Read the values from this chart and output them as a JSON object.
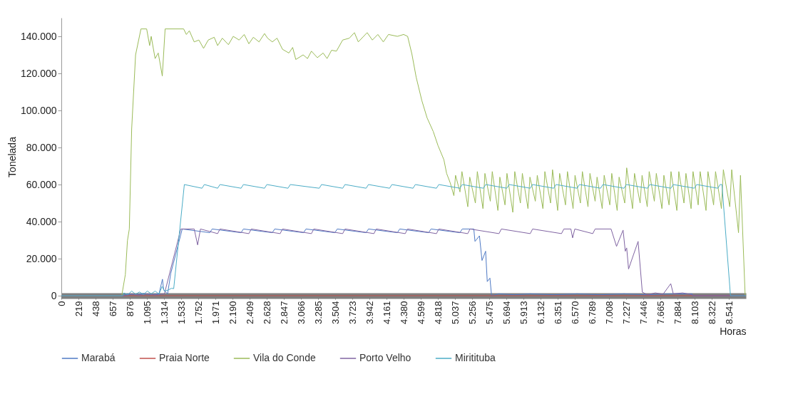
{
  "chart_data": {
    "type": "line",
    "xlabel": "Horas",
    "ylabel": "Tonelada",
    "xlim": [
      0,
      8760
    ],
    "ylim": [
      0,
      150000
    ],
    "xticks": [
      0,
      219,
      438,
      657,
      876,
      {
        "value": 1095,
        "label": "1.095"
      },
      {
        "value": 1314,
        "label": "1.314"
      },
      {
        "value": 1533,
        "label": "1.533"
      },
      {
        "value": 1752,
        "label": "1.752"
      },
      {
        "value": 1971,
        "label": "1.971"
      },
      {
        "value": 2190,
        "label": "2.190"
      },
      {
        "value": 2409,
        "label": "2.409"
      },
      {
        "value": 2628,
        "label": "2.628"
      },
      {
        "value": 2847,
        "label": "2.847"
      },
      {
        "value": 3066,
        "label": "3.066"
      },
      {
        "value": 3285,
        "label": "3.285"
      },
      {
        "value": 3504,
        "label": "3.504"
      },
      {
        "value": 3723,
        "label": "3.723"
      },
      {
        "value": 3942,
        "label": "3.942"
      },
      {
        "value": 4161,
        "label": "4.161"
      },
      {
        "value": 4380,
        "label": "4.380"
      },
      {
        "value": 4599,
        "label": "4.599"
      },
      {
        "value": 4818,
        "label": "4.818"
      },
      {
        "value": 5037,
        "label": "5.037"
      },
      {
        "value": 5256,
        "label": "5.256"
      },
      {
        "value": 5475,
        "label": "5.475"
      },
      {
        "value": 5694,
        "label": "5.694"
      },
      {
        "value": 5913,
        "label": "5.913"
      },
      {
        "value": 6132,
        "label": "6.132"
      },
      {
        "value": 6351,
        "label": "6.351"
      },
      {
        "value": 6570,
        "label": "6.570"
      },
      {
        "value": 6789,
        "label": "6.789"
      },
      {
        "value": 7008,
        "label": "7.008"
      },
      {
        "value": 7227,
        "label": "7.227"
      },
      {
        "value": 7446,
        "label": "7.446"
      },
      {
        "value": 7665,
        "label": "7.665"
      },
      {
        "value": 7884,
        "label": "7.884"
      },
      {
        "value": 8103,
        "label": "8.103"
      },
      {
        "value": 8322,
        "label": "8.322"
      },
      {
        "value": 8541,
        "label": "8.541"
      }
    ],
    "yticks": [
      0,
      {
        "value": 20000,
        "label": "20.000"
      },
      {
        "value": 40000,
        "label": "40.000"
      },
      {
        "value": 60000,
        "label": "60.000"
      },
      {
        "value": 80000,
        "label": "80.000"
      },
      {
        "value": 100000,
        "label": "100.000"
      },
      {
        "value": 120000,
        "label": "120.000"
      },
      {
        "value": 140000,
        "label": "140.000"
      }
    ],
    "grid": false,
    "legend": "bottom",
    "marker": "none",
    "line_style": "solid",
    "series": [
      {
        "name": "Marabá",
        "color": "#4f7ac5",
        "x": [
          0,
          790,
          850,
          950,
          1050,
          1150,
          1250,
          1294,
          1310,
          1360,
          1400,
          1547,
          1900,
          1930,
          2300,
          2330,
          2700,
          2730,
          3100,
          3130,
          3500,
          3530,
          3900,
          3930,
          4300,
          4330,
          4700,
          4730,
          5100,
          5130,
          5278,
          5293,
          5350,
          5383,
          5429,
          5450,
          5484,
          5505,
          5600,
          5800,
          6000,
          6300,
          6600,
          6900,
          7200,
          7500,
          7800,
          8071,
          8080,
          8760
        ],
        "values": [
          0,
          0,
          1000,
          500,
          1200,
          600,
          1000,
          8900,
          3000,
          1000,
          12000,
          36000,
          34000,
          36000,
          34000,
          36000,
          34000,
          36000,
          34000,
          36000,
          34000,
          36000,
          34000,
          36000,
          34000,
          36000,
          34000,
          36000,
          34000,
          36000,
          36000,
          29300,
          32300,
          19000,
          24000,
          7600,
          9500,
          0,
          1000,
          500,
          1000,
          500,
          1000,
          500,
          1000,
          500,
          1000,
          1000,
          0,
          0
        ]
      },
      {
        "name": "Praia Norte",
        "color": "#c0504d",
        "x": [
          0,
          8760
        ],
        "values": [
          0,
          0
        ]
      },
      {
        "name": "Vila do Conde",
        "color": "#9bbb59",
        "x": [
          0,
          773,
          819,
          846,
          870,
          900,
          950,
          1019,
          1092,
          1130,
          1150,
          1200,
          1240,
          1292,
          1328,
          1565,
          1600,
          1638,
          1700,
          1760,
          1820,
          1880,
          1956,
          2000,
          2060,
          2138,
          2200,
          2275,
          2340,
          2400,
          2457,
          2530,
          2600,
          2639,
          2700,
          2760,
          2830,
          2912,
          2960,
          3000,
          3094,
          3150,
          3200,
          3276,
          3350,
          3400,
          3458,
          3520,
          3600,
          3685,
          3750,
          3800,
          3913,
          3980,
          4050,
          4120,
          4186,
          4300,
          4380,
          4431,
          4486,
          4540,
          4613,
          4680,
          4759,
          4820,
          4895,
          4930,
          4977,
          5023,
          5044,
          5101,
          5126,
          5201,
          5226,
          5298,
          5323,
          5395,
          5420,
          5489,
          5514,
          5586,
          5611,
          5677,
          5702,
          5777,
          5802,
          5874,
          5899,
          5971,
          5996,
          6065,
          6090,
          6162,
          6187,
          6260,
          6285,
          6351,
          6376,
          6451,
          6476,
          6548,
          6573,
          6642,
          6667,
          6739,
          6764,
          6830,
          6855,
          6921,
          6946,
          7018,
          7043,
          7112,
          7137,
          7209,
          7234,
          7309,
          7334,
          7406,
          7431,
          7497,
          7522,
          7588,
          7613,
          7685,
          7710,
          7776,
          7801,
          7876,
          7901,
          7967,
          7992,
          8058,
          8083,
          8149,
          8174,
          8249,
          8274,
          8346,
          8371,
          8446,
          8471,
          8553,
          8578,
          8665,
          8690,
          8750,
          8760
        ],
        "values": [
          0,
          0,
          11400,
          29700,
          36000,
          90000,
          130000,
          144000,
          144000,
          135000,
          140000,
          128000,
          131000,
          118600,
          144000,
          144000,
          141000,
          143000,
          137000,
          138000,
          133500,
          138000,
          139500,
          135000,
          139000,
          135500,
          140000,
          138000,
          141000,
          136000,
          139500,
          137000,
          141500,
          139000,
          137000,
          139000,
          133000,
          131000,
          134000,
          127500,
          130000,
          128000,
          132000,
          128500,
          131000,
          128000,
          132500,
          132000,
          138000,
          139000,
          142000,
          137000,
          142000,
          138000,
          141000,
          137000,
          141000,
          140000,
          141000,
          140000,
          130400,
          118000,
          105300,
          96000,
          88600,
          81000,
          73400,
          66000,
          60800,
          54000,
          65000,
          56000,
          67000,
          48000,
          64000,
          50000,
          67000,
          47000,
          66000,
          51000,
          67000,
          46000,
          64000,
          49000,
          66000,
          45000,
          67000,
          50000,
          66000,
          47000,
          64000,
          51000,
          65000,
          47000,
          67000,
          50000,
          68000,
          46000,
          66000,
          49000,
          67000,
          47000,
          65000,
          50000,
          67000,
          48000,
          66000,
          51000,
          64000,
          47000,
          65000,
          49000,
          66000,
          46000,
          64000,
          50000,
          69000,
          47000,
          66000,
          50000,
          65000,
          48000,
          67000,
          51000,
          66000,
          47000,
          65000,
          49000,
          67000,
          46000,
          67000,
          50000,
          66000,
          47000,
          67000,
          49000,
          67000,
          46000,
          67000,
          49000,
          67000,
          47000,
          68000,
          48000,
          68000,
          34000,
          65000,
          0,
          0
        ]
      },
      {
        "name": "Porto Velho",
        "color": "#8064a2",
        "x": [
          0,
          790,
          900,
          1000,
          1100,
          1200,
          1319,
          1529,
          1700,
          1744,
          1780,
          2000,
          2030,
          2400,
          2430,
          2800,
          2830,
          3200,
          3230,
          3600,
          3630,
          4000,
          4030,
          4400,
          4430,
          4800,
          4830,
          5200,
          5230,
          5600,
          5630,
          6000,
          6030,
          6400,
          6430,
          6520,
          6542,
          6570,
          6800,
          6830,
          7034,
          7104,
          7188,
          7216,
          7234,
          7258,
          7380,
          7434,
          7500,
          7600,
          7700,
          7798,
          7830,
          7950,
          8071,
          8080,
          8760
        ],
        "values": [
          0,
          0,
          800,
          300,
          900,
          400,
          1000,
          36000,
          36000,
          27400,
          36000,
          33500,
          36000,
          33500,
          36000,
          33500,
          36000,
          33500,
          36000,
          33500,
          36000,
          33500,
          36000,
          33500,
          36000,
          33500,
          36000,
          33500,
          36000,
          33500,
          36000,
          33500,
          36000,
          33500,
          36000,
          36000,
          31200,
          36000,
          33500,
          36000,
          36000,
          26600,
          35400,
          24000,
          25800,
          14400,
          29300,
          1900,
          500,
          1500,
          800,
          6500,
          1000,
          1500,
          500,
          0,
          0
        ]
      },
      {
        "name": "Miritituba",
        "color": "#4bacc6",
        "x": [
          0,
          790,
          800,
          850,
          900,
          950,
          1000,
          1050,
          1100,
          1150,
          1200,
          1250,
          1290,
          1320,
          1365,
          1410,
          1438,
          1574,
          1800,
          1830,
          2000,
          2030,
          2300,
          2330,
          2600,
          2630,
          2900,
          2930,
          3300,
          3330,
          3600,
          3630,
          3900,
          3930,
          4200,
          4230,
          4500,
          4530,
          4800,
          4830,
          5100,
          5130,
          5400,
          5430,
          5700,
          5730,
          6000,
          6030,
          6300,
          6330,
          6600,
          6630,
          6900,
          6930,
          7200,
          7230,
          7500,
          7530,
          7800,
          7830,
          8100,
          8130,
          8400,
          8430,
          8453,
          8562,
          8760
        ],
        "values": [
          0,
          0,
          1500,
          500,
          2500,
          800,
          2000,
          600,
          2500,
          1000,
          2500,
          900,
          5000,
          2500,
          3000,
          4000,
          3800,
          60000,
          58000,
          60000,
          58000,
          60000,
          58000,
          60000,
          58000,
          60000,
          58000,
          60000,
          58000,
          60000,
          58000,
          60000,
          58000,
          60000,
          58000,
          60000,
          58000,
          60000,
          58000,
          60000,
          58000,
          60000,
          58000,
          60000,
          58000,
          60000,
          58000,
          60000,
          58000,
          60000,
          58000,
          60000,
          58000,
          60000,
          58000,
          60000,
          58000,
          60000,
          58000,
          60000,
          58000,
          60000,
          58000,
          60000,
          60000,
          0,
          0
        ]
      }
    ]
  }
}
